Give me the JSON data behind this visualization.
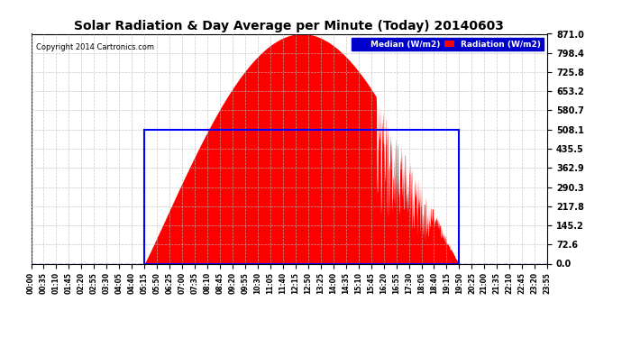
{
  "title": "Solar Radiation & Day Average per Minute (Today) 20140603",
  "copyright": "Copyright 2014 Cartronics.com",
  "ymax": 871.0,
  "yticks": [
    0.0,
    72.6,
    145.2,
    217.8,
    290.3,
    362.9,
    435.5,
    508.1,
    580.7,
    653.2,
    725.8,
    798.4,
    871.0
  ],
  "median_value": 508.1,
  "radiation_color": "#ff0000",
  "median_color": "#0000ff",
  "background_color": "#ffffff",
  "grid_color": "#bbbbbb",
  "sunrise_minute": 315,
  "sunset_minute": 1190,
  "peak_minute": 735,
  "peak_value": 871.0,
  "legend_median_bg": "#0000cc",
  "legend_radiation_bg": "#ff0000",
  "total_minutes": 1440,
  "xtick_interval": 35
}
